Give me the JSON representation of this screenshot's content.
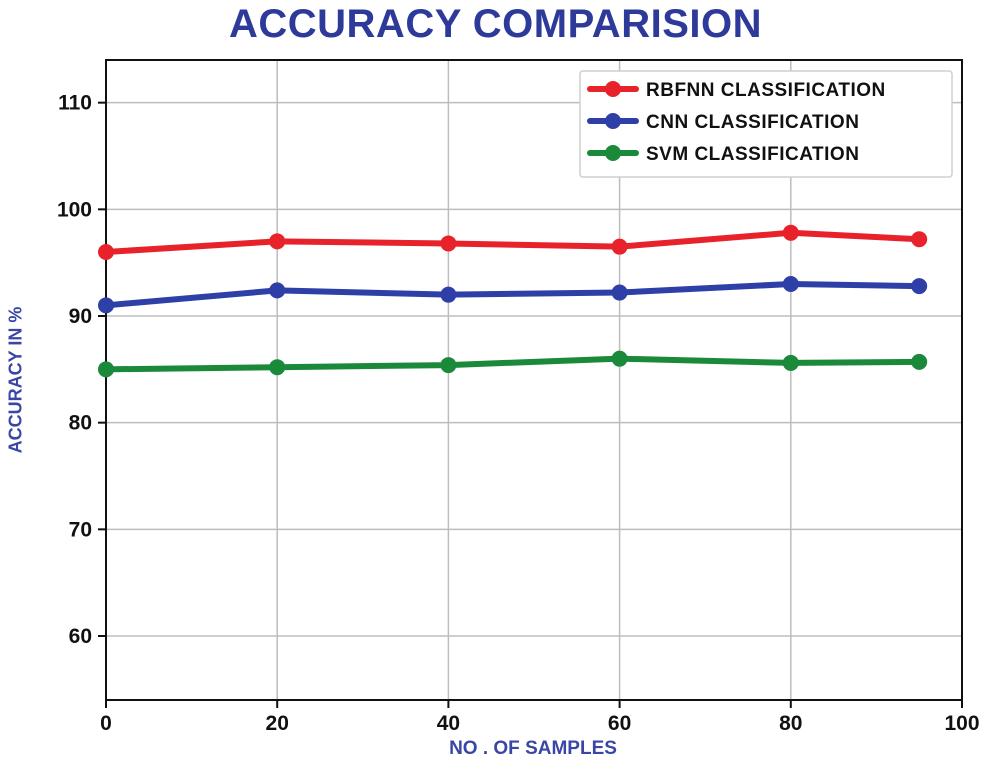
{
  "chart_data": {
    "type": "line",
    "title": "ACCURACY COMPARISION",
    "xlabel": "NO . OF SAMPLES",
    "ylabel": "ACCURACY IN %",
    "x": [
      0,
      20,
      40,
      60,
      80,
      95
    ],
    "xlim": [
      0,
      100
    ],
    "ylim": [
      54,
      114
    ],
    "xticks": [
      0,
      20,
      40,
      60,
      80,
      100
    ],
    "yticks": [
      60,
      70,
      80,
      90,
      100,
      110
    ],
    "grid": true,
    "legend_position": "top-right",
    "series": [
      {
        "name": "RBFNN CLASSIFICATION",
        "color": "#e8222b",
        "values": [
          96.0,
          97.0,
          96.8,
          96.5,
          97.8,
          97.2
        ]
      },
      {
        "name": "CNN CLASSIFICATION",
        "color": "#2e3fa8",
        "values": [
          91.0,
          92.4,
          92.0,
          92.2,
          93.0,
          92.8
        ]
      },
      {
        "name": "SVM CLASSIFICATION",
        "color": "#1a8a3a",
        "values": [
          85.0,
          85.2,
          85.4,
          86.0,
          85.6,
          85.7
        ]
      }
    ]
  }
}
